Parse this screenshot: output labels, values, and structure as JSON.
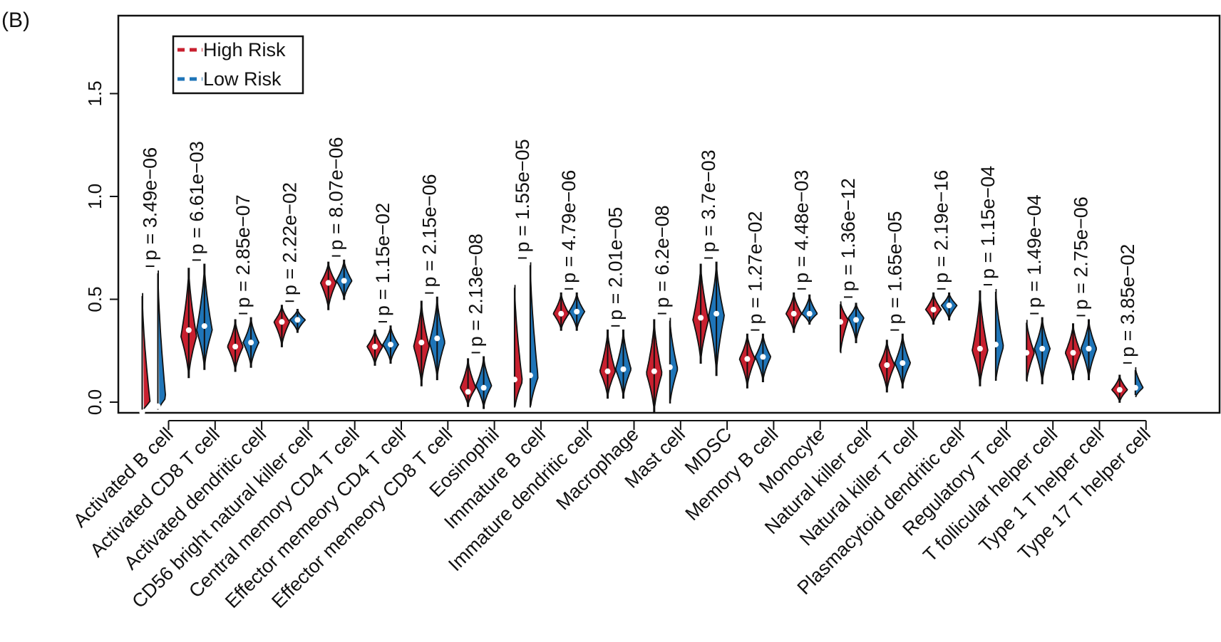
{
  "panel_label": "(B)",
  "chart_data": {
    "type": "violin",
    "yticks": [
      "0.0",
      "0.5",
      "1.0",
      "1.5"
    ],
    "ylim": [
      -0.07,
      1.88
    ],
    "legend_position": "top-left",
    "grid": false,
    "colors": {
      "High Risk": "#c8202f",
      "Low Risk": "#1f75b8"
    },
    "series": [
      {
        "name": "High Risk",
        "color": "#c8202f"
      },
      {
        "name": "Low Risk",
        "color": "#1f75b8"
      }
    ],
    "categories": [
      "Activated B cell",
      "Activated CD8 T cell",
      "Activated dendritic cell",
      "CD56 bright natural killer cell",
      "Central memory CD4 T cell",
      "Effector memeory CD4 T cell",
      "Effector memeory CD8 T cell",
      "Eosinophil",
      "Immature B cell",
      "Immature dendritic cell",
      "Macrophage",
      "Mast cell",
      "MDSC",
      "Memory B cell",
      "Monocyte",
      "Natural killer  cell",
      "Natural killer T cell",
      "Plasmacytoid dendritic cell",
      "Regulatory T cell",
      "T follicular helper cell",
      "Type 1 T helper cell",
      "Type 17 T helper cell"
    ],
    "p_values": [
      "p = 3.49e−06",
      "p = 6.61e−03",
      "p = 2.85e−07",
      "p = 2.22e−02",
      "p = 8.07e−06",
      "p = 1.15e−02",
      "p = 2.15e−06",
      "p = 2.13e−08",
      "p = 1.55e−05",
      "p = 4.79e−06",
      "p = 2.01e−05",
      "p = 6.2e−08",
      "p = 3.7e−03",
      "p = 1.27e−02",
      "p = 4.48e−03",
      "p = 1.36e−12",
      "p = 1.65e−05",
      "p = 2.19e−16",
      "p = 1.15e−04",
      "p = 1.49e−04",
      "p = 2.75e−06",
      "p = 3.85e−02"
    ],
    "violins": [
      {
        "high": {
          "min": -0.05,
          "max": 0.53,
          "median": -0.05,
          "mode": 0.0
        },
        "low": {
          "min": -0.05,
          "max": 0.64,
          "median": -0.02,
          "mode": 0.02
        }
      },
      {
        "high": {
          "min": 0.12,
          "max": 0.65,
          "median": 0.35,
          "mode": 0.32
        },
        "low": {
          "min": 0.16,
          "max": 0.67,
          "median": 0.37,
          "mode": 0.35
        }
      },
      {
        "high": {
          "min": 0.15,
          "max": 0.4,
          "median": 0.27,
          "mode": 0.27
        },
        "low": {
          "min": 0.17,
          "max": 0.41,
          "median": 0.29,
          "mode": 0.29
        }
      },
      {
        "high": {
          "min": 0.27,
          "max": 0.47,
          "median": 0.39,
          "mode": 0.39
        },
        "low": {
          "min": 0.34,
          "max": 0.45,
          "median": 0.4,
          "mode": 0.4
        }
      },
      {
        "high": {
          "min": 0.45,
          "max": 0.68,
          "median": 0.58,
          "mode": 0.58
        },
        "low": {
          "min": 0.5,
          "max": 0.69,
          "median": 0.59,
          "mode": 0.59
        }
      },
      {
        "high": {
          "min": 0.18,
          "max": 0.35,
          "median": 0.27,
          "mode": 0.27
        },
        "low": {
          "min": 0.19,
          "max": 0.37,
          "median": 0.28,
          "mode": 0.28
        }
      },
      {
        "high": {
          "min": 0.08,
          "max": 0.49,
          "median": 0.29,
          "mode": 0.27
        },
        "low": {
          "min": 0.11,
          "max": 0.51,
          "median": 0.31,
          "mode": 0.29
        }
      },
      {
        "high": {
          "min": -0.02,
          "max": 0.21,
          "median": 0.05,
          "mode": 0.07
        },
        "low": {
          "min": -0.03,
          "max": 0.22,
          "median": 0.07,
          "mode": 0.08
        }
      },
      {
        "high": {
          "min": -0.04,
          "max": 0.57,
          "median": 0.11,
          "mode": 0.1
        },
        "low": {
          "min": -0.04,
          "max": 0.68,
          "median": 0.13,
          "mode": 0.12
        }
      },
      {
        "high": {
          "min": 0.35,
          "max": 0.53,
          "median": 0.43,
          "mode": 0.43
        },
        "low": {
          "min": 0.35,
          "max": 0.53,
          "median": 0.44,
          "mode": 0.44
        }
      },
      {
        "high": {
          "min": 0.02,
          "max": 0.35,
          "median": 0.15,
          "mode": 0.15
        },
        "low": {
          "min": 0.02,
          "max": 0.35,
          "median": 0.16,
          "mode": 0.16
        }
      },
      {
        "high": {
          "min": -0.05,
          "max": 0.4,
          "median": 0.15,
          "mode": 0.14
        },
        "low": {
          "min": -0.02,
          "max": 0.41,
          "median": 0.17,
          "mode": 0.16
        }
      },
      {
        "high": {
          "min": 0.19,
          "max": 0.67,
          "median": 0.41,
          "mode": 0.4
        },
        "low": {
          "min": 0.13,
          "max": 0.68,
          "median": 0.43,
          "mode": 0.42
        }
      },
      {
        "high": {
          "min": 0.07,
          "max": 0.33,
          "median": 0.21,
          "mode": 0.21
        },
        "low": {
          "min": 0.1,
          "max": 0.33,
          "median": 0.22,
          "mode": 0.22
        }
      },
      {
        "high": {
          "min": 0.34,
          "max": 0.53,
          "median": 0.43,
          "mode": 0.43
        },
        "low": {
          "min": 0.38,
          "max": 0.52,
          "median": 0.43,
          "mode": 0.43
        }
      },
      {
        "high": {
          "min": 0.23,
          "max": 0.49,
          "median": 0.39,
          "mode": 0.4
        },
        "low": {
          "min": 0.29,
          "max": 0.48,
          "median": 0.4,
          "mode": 0.41
        }
      },
      {
        "high": {
          "min": 0.05,
          "max": 0.3,
          "median": 0.18,
          "mode": 0.18
        },
        "low": {
          "min": 0.07,
          "max": 0.33,
          "median": 0.19,
          "mode": 0.19
        }
      },
      {
        "high": {
          "min": 0.38,
          "max": 0.53,
          "median": 0.45,
          "mode": 0.45
        },
        "low": {
          "min": 0.4,
          "max": 0.53,
          "median": 0.47,
          "mode": 0.47
        }
      },
      {
        "high": {
          "min": 0.08,
          "max": 0.54,
          "median": 0.26,
          "mode": 0.25
        },
        "low": {
          "min": 0.09,
          "max": 0.55,
          "median": 0.28,
          "mode": 0.27
        }
      },
      {
        "high": {
          "min": 0.09,
          "max": 0.4,
          "median": 0.24,
          "mode": 0.24
        },
        "low": {
          "min": 0.09,
          "max": 0.41,
          "median": 0.26,
          "mode": 0.26
        }
      },
      {
        "high": {
          "min": 0.11,
          "max": 0.38,
          "median": 0.24,
          "mode": 0.24
        },
        "low": {
          "min": 0.11,
          "max": 0.4,
          "median": 0.26,
          "mode": 0.26
        }
      },
      {
        "high": {
          "min": 0.0,
          "max": 0.13,
          "median": 0.06,
          "mode": 0.06
        },
        "low": {
          "min": 0.02,
          "max": 0.17,
          "median": 0.07,
          "mode": 0.07
        }
      }
    ]
  }
}
